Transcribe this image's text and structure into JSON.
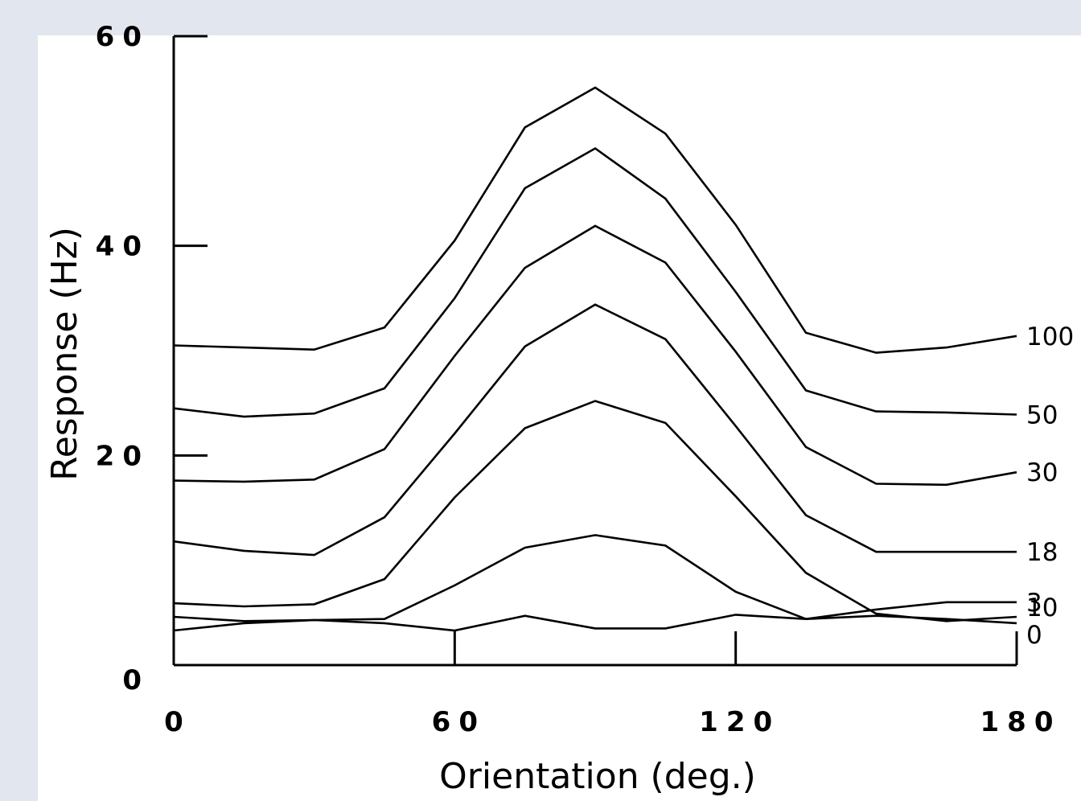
{
  "chart_data": {
    "type": "line",
    "title": "",
    "xlabel": "Orientation (deg.)",
    "ylabel": "Response (Hz)",
    "xlim": [
      0,
      180
    ],
    "ylim": [
      0,
      60
    ],
    "x_ticks": [
      0,
      60,
      120,
      180
    ],
    "y_ticks": [
      0,
      20,
      40,
      60
    ],
    "x_tick_labels": [
      "0",
      "60",
      "120",
      "180"
    ],
    "y_tick_labels": [
      "0",
      "20",
      "40",
      "60"
    ],
    "grid": false,
    "legend": "series labels at right end of each line",
    "x": [
      0,
      15,
      30,
      45,
      60,
      75,
      90,
      105,
      120,
      135,
      150,
      165,
      180
    ],
    "series": [
      {
        "name": "100",
        "values": [
          30.5,
          30.3,
          30.1,
          32.2,
          40.5,
          51.3,
          55.1,
          50.7,
          42.0,
          31.7,
          29.8,
          30.3,
          31.4
        ]
      },
      {
        "name": "50",
        "values": [
          24.5,
          23.7,
          24.0,
          26.4,
          35.0,
          45.5,
          49.3,
          44.5,
          35.6,
          26.2,
          24.2,
          24.1,
          23.9
        ]
      },
      {
        "name": "30",
        "values": [
          17.6,
          17.5,
          17.7,
          20.6,
          29.5,
          37.9,
          41.9,
          38.4,
          29.9,
          20.8,
          17.3,
          17.2,
          18.4
        ]
      },
      {
        "name": "18",
        "values": [
          11.8,
          10.9,
          10.5,
          14.1,
          22.1,
          30.4,
          34.4,
          31.1,
          22.8,
          14.3,
          10.8,
          10.8,
          10.8
        ]
      },
      {
        "name": "10",
        "values": [
          5.9,
          5.6,
          5.8,
          8.2,
          16.0,
          22.6,
          25.2,
          23.1,
          16.1,
          8.8,
          4.9,
          4.2,
          4.6
        ]
      },
      {
        "name": "3",
        "values": [
          4.6,
          4.2,
          4.3,
          4.4,
          7.6,
          11.2,
          12.4,
          11.4,
          7.0,
          4.4,
          5.3,
          6.0,
          6.0
        ]
      },
      {
        "name": "0",
        "values": [
          3.3,
          4.0,
          4.3,
          4.0,
          3.3,
          4.7,
          3.5,
          3.5,
          4.8,
          4.4,
          4.7,
          4.4,
          4.0
        ]
      }
    ]
  }
}
